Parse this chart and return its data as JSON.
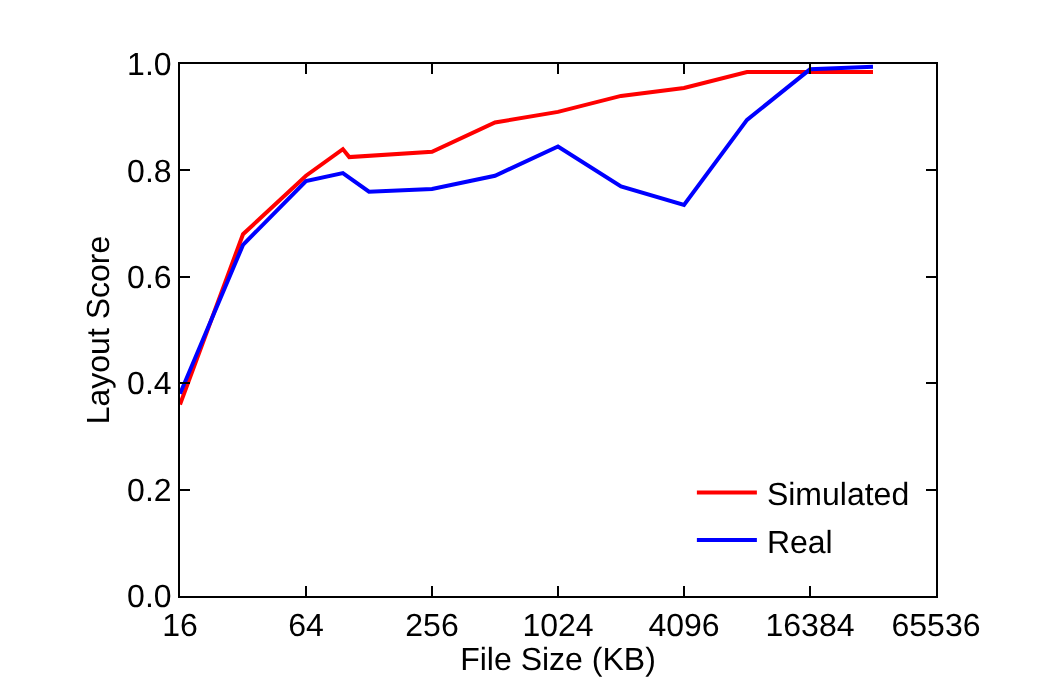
{
  "chart_data": {
    "type": "line",
    "xlabel": "File Size (KB)",
    "ylabel": "Layout Score",
    "log": "x",
    "legend": "bottom right",
    "marker": "none",
    "line_style": "solid",
    "xlim": [
      16,
      65536
    ],
    "xticks": [
      16,
      64,
      256,
      1024,
      4096,
      16384,
      65536
    ],
    "ylim": [
      0,
      1
    ],
    "yticks": [
      {
        "value": 0,
        "label": "0.0"
      },
      0.2,
      0.4,
      0.6,
      0.8,
      {
        "value": 1,
        "label": "1.0"
      }
    ],
    "series": [
      {
        "name": "Simulated",
        "color": "#ff0000",
        "x": [
          16,
          32,
          64,
          96,
          103,
          256,
          512,
          1024,
          2048,
          4096,
          8192,
          16384,
          32768
        ],
        "values": [
          0.36,
          0.68,
          0.79,
          0.84,
          0.825,
          0.835,
          0.89,
          0.91,
          0.94,
          0.955,
          0.985,
          0.985,
          0.985
        ]
      },
      {
        "name": "Real",
        "color": "#0000ff",
        "x": [
          16,
          32,
          64,
          96,
          128,
          256,
          512,
          1024,
          2048,
          4096,
          8192,
          16384,
          32768
        ],
        "values": [
          0.38,
          0.66,
          0.78,
          0.795,
          0.76,
          0.765,
          0.79,
          0.845,
          0.77,
          0.735,
          0.895,
          0.99,
          0.995
        ]
      }
    ]
  }
}
